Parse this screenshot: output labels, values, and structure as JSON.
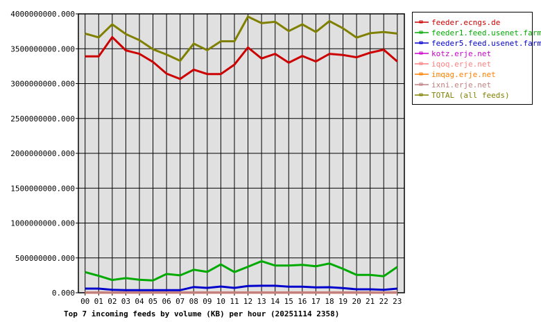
{
  "chart_data": {
    "type": "line",
    "title": "Top 7 incoming feeds by volume (KB) per hour (20251114 2358)",
    "xlabel": "",
    "ylabel": "",
    "categories": [
      "00",
      "01",
      "02",
      "03",
      "04",
      "05",
      "06",
      "07",
      "08",
      "09",
      "10",
      "11",
      "12",
      "13",
      "14",
      "15",
      "16",
      "17",
      "18",
      "19",
      "20",
      "21",
      "22",
      "23"
    ],
    "ylim": [
      0,
      4000000000
    ],
    "yticks": [
      "0.000",
      "500000000.000",
      "1000000000.000",
      "1500000000.000",
      "2000000000.000",
      "2500000000.000",
      "3000000000.000",
      "3500000000.000",
      "4000000000.000"
    ],
    "grid": true,
    "legend_position": "right",
    "series": [
      {
        "name": "feeder.ecngs.de",
        "color": "#cc0000",
        "values": [
          3390000000,
          3390000000,
          3667000000,
          3477000000,
          3427000000,
          3310000000,
          3143000000,
          3067000000,
          3200000000,
          3137000000,
          3137000000,
          3273000000,
          3517000000,
          3360000000,
          3427000000,
          3300000000,
          3397000000,
          3317000000,
          3427000000,
          3410000000,
          3377000000,
          3443000000,
          3487000000,
          3317000000
        ]
      },
      {
        "name": "feeder1.feed.usenet.farm",
        "color": "#00aa00",
        "values": [
          297000000,
          243000000,
          183000000,
          210000000,
          187000000,
          177000000,
          270000000,
          250000000,
          330000000,
          300000000,
          407000000,
          297000000,
          373000000,
          453000000,
          390000000,
          390000000,
          400000000,
          380000000,
          420000000,
          343000000,
          257000000,
          257000000,
          237000000,
          370000000
        ]
      },
      {
        "name": "feeder5.feed.usenet.farm",
        "color": "#0000cc",
        "values": [
          60000000,
          60000000,
          43000000,
          37000000,
          37000000,
          37000000,
          37000000,
          37000000,
          83000000,
          70000000,
          90000000,
          70000000,
          97000000,
          100000000,
          100000000,
          87000000,
          87000000,
          77000000,
          80000000,
          67000000,
          50000000,
          50000000,
          43000000,
          60000000
        ]
      },
      {
        "name": "kotz.erje.net",
        "color": "#cc00cc",
        "values": [
          3000000,
          3000000,
          3000000,
          3000000,
          3000000,
          3000000,
          3000000,
          3000000,
          3000000,
          3000000,
          3000000,
          3000000,
          3000000,
          3000000,
          3000000,
          3000000,
          3000000,
          3000000,
          3000000,
          3000000,
          3000000,
          3000000,
          3000000,
          3000000
        ]
      },
      {
        "name": "iqoq.erje.net",
        "color": "#ff8080",
        "values": [
          3000000,
          3000000,
          3000000,
          3000000,
          3000000,
          3000000,
          3000000,
          3000000,
          3000000,
          3000000,
          3000000,
          3000000,
          3000000,
          3000000,
          3000000,
          3000000,
          3000000,
          3000000,
          3000000,
          3000000,
          3000000,
          3000000,
          3000000,
          3000000
        ]
      },
      {
        "name": "imqag.erje.net",
        "color": "#ff8000",
        "values": [
          3000000,
          3000000,
          3000000,
          3000000,
          3000000,
          3000000,
          3000000,
          3000000,
          3000000,
          3000000,
          3000000,
          3000000,
          3000000,
          3000000,
          3000000,
          3000000,
          3000000,
          3000000,
          3000000,
          3000000,
          3000000,
          3000000,
          3000000,
          3000000
        ]
      },
      {
        "name": "ixni.erje.net",
        "color": "#c08080",
        "values": [
          3000000,
          3000000,
          3000000,
          3000000,
          3000000,
          3000000,
          3000000,
          3000000,
          3000000,
          3000000,
          3000000,
          3000000,
          3000000,
          3000000,
          3000000,
          3000000,
          3000000,
          3000000,
          3000000,
          3000000,
          3000000,
          3000000,
          3000000,
          3000000
        ]
      },
      {
        "name": "TOTAL (all feeds)",
        "color": "#808000",
        "values": [
          3717000000,
          3663000000,
          3850000000,
          3710000000,
          3623000000,
          3493000000,
          3417000000,
          3327000000,
          3573000000,
          3480000000,
          3607000000,
          3607000000,
          3960000000,
          3867000000,
          3887000000,
          3753000000,
          3850000000,
          3740000000,
          3897000000,
          3793000000,
          3660000000,
          3723000000,
          3740000000,
          3717000000
        ]
      }
    ]
  }
}
